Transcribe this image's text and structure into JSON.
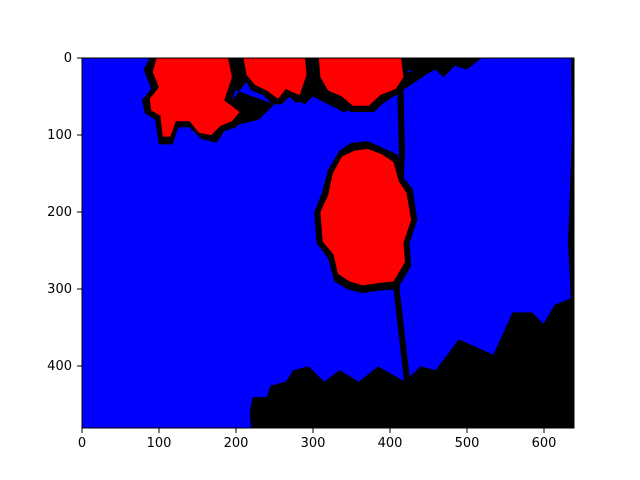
{
  "image": {
    "kind": "segmentation-mask",
    "colors": {
      "sky": "#0000ff",
      "flower": "#ff0000",
      "outline": "#000000",
      "background": "#ffffff"
    },
    "x_ticks": [
      "0",
      "100",
      "200",
      "300",
      "400",
      "500",
      "600"
    ],
    "y_ticks": [
      "0",
      "100",
      "200",
      "300",
      "400"
    ],
    "x_range": [
      0,
      640
    ],
    "y_range": [
      0,
      480
    ],
    "y_inverted": true
  }
}
